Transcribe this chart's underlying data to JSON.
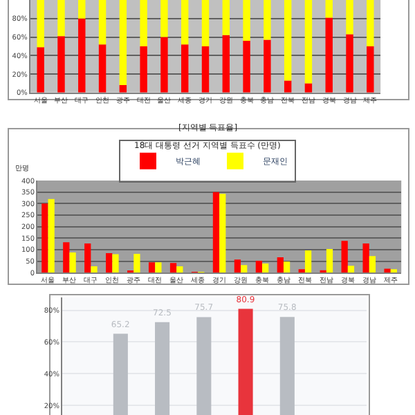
{
  "chart_data": [
    {
      "type": "bar",
      "stacked": true,
      "categories": [
        "서울",
        "부산",
        "대구",
        "인천",
        "광주",
        "대전",
        "울산",
        "세종",
        "경기",
        "강원",
        "충북",
        "충남",
        "전북",
        "전남",
        "경북",
        "경남",
        "제주"
      ],
      "series": [
        {
          "color": "#ff0000",
          "values": [
            49,
            61,
            80,
            52,
            8,
            50,
            60,
            52,
            50,
            62,
            56,
            57,
            13,
            10,
            81,
            63,
            50
          ]
        },
        {
          "color": "#ffff00",
          "values": [
            51,
            39,
            20,
            48,
            92,
            50,
            40,
            48,
            50,
            38,
            44,
            43,
            87,
            90,
            19,
            37,
            50
          ]
        }
      ],
      "ylim": [
        0,
        100
      ],
      "yticks": [
        {
          "value": 0,
          "label": "0%"
        },
        {
          "value": 20,
          "label": "20%"
        },
        {
          "value": 40,
          "label": "40%"
        },
        {
          "value": 60,
          "label": "60%"
        },
        {
          "value": 80,
          "label": "80%"
        }
      ],
      "grid": "y",
      "legend": false,
      "annotations": [
        "[지역별 득표율]"
      ]
    },
    {
      "type": "bar",
      "title": "18대 대통령 선거 지역별 득표수 (만명)",
      "ylabel": "만명",
      "categories": [
        "서울",
        "부산",
        "대구",
        "인천",
        "광주",
        "대전",
        "울산",
        "세종",
        "경기",
        "강원",
        "충북",
        "충남",
        "전북",
        "전남",
        "경북",
        "경남",
        "제주"
      ],
      "series": [
        {
          "name": "박근혜",
          "color": "#ff0000",
          "values": [
            300,
            132,
            127,
            85,
            8,
            45,
            42,
            3,
            350,
            57,
            52,
            67,
            15,
            10,
            138,
            127,
            17
          ]
        },
        {
          "name": "문재인",
          "color": "#ffff00",
          "values": [
            320,
            88,
            28,
            80,
            82,
            45,
            28,
            2,
            342,
            33,
            40,
            48,
            97,
            103,
            30,
            72,
            15
          ]
        }
      ],
      "ylim": [
        0,
        400
      ],
      "yticks": [
        0,
        50,
        100,
        150,
        200,
        250,
        300,
        350,
        400
      ],
      "grid": "y",
      "legend": "top"
    },
    {
      "type": "bar",
      "categories": [
        null,
        null,
        null,
        null,
        null
      ],
      "values": [
        65.2,
        72.5,
        75.7,
        80.9,
        75.8
      ],
      "colors": [
        "#b8bcc2",
        "#b8bcc2",
        "#b8bcc2",
        "#e8343c",
        "#b8bcc2"
      ],
      "data_labels": true,
      "ylim": [
        14,
        88
      ],
      "yticks": [
        {
          "value": 20,
          "label": "20%"
        },
        {
          "value": 40,
          "label": "40%"
        },
        {
          "value": 60,
          "label": "60%"
        },
        {
          "value": 80,
          "label": "80%"
        }
      ],
      "grid": "y",
      "legend": false
    }
  ]
}
